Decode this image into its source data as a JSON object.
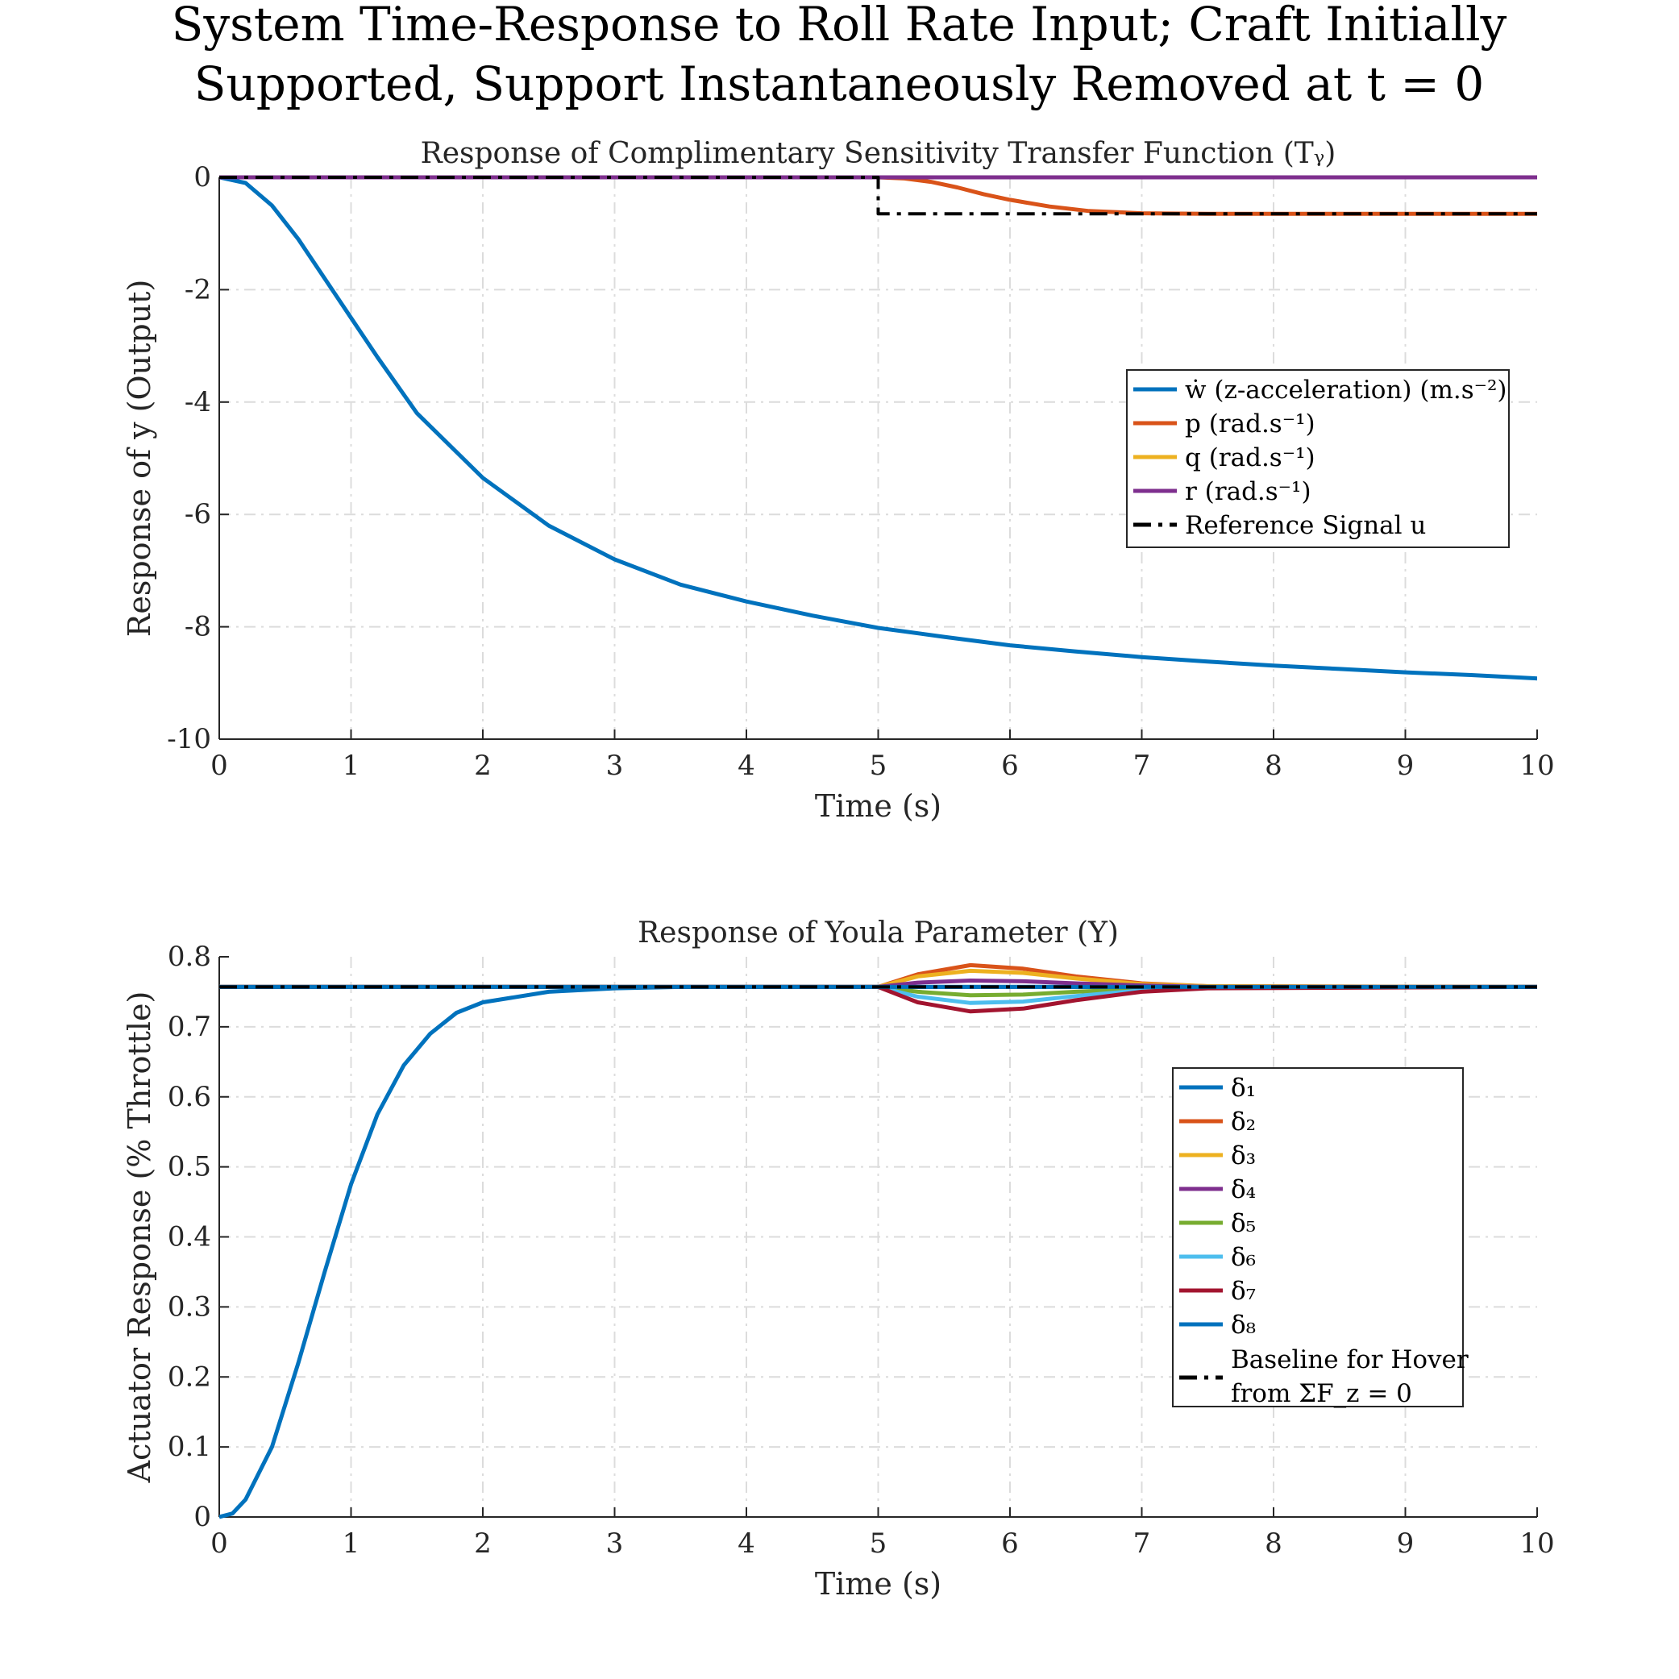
{
  "figure": {
    "title_line1": "System Time-Response to Roll Rate Input; Craft Initially",
    "title_line2": "Supported, Support Instantaneously Removed at t = 0"
  },
  "chart_data": [
    {
      "type": "line",
      "title": "Response of Complimentary Sensitivity Transfer Function (Tᵧ)",
      "xlabel": "Time (s)",
      "ylabel": "Response of y (Output)",
      "xlim": [
        0,
        10
      ],
      "ylim": [
        -10,
        0
      ],
      "xticks": [
        "0",
        "1",
        "2",
        "3",
        "4",
        "5",
        "6",
        "7",
        "8",
        "9",
        "10"
      ],
      "yticks": [
        "0",
        "-2",
        "-4",
        "-6",
        "-8",
        "-10"
      ],
      "grid": true,
      "legend_position": "right, upper-middle",
      "series": [
        {
          "name": "ẇ (z-acceleration) (m.s⁻²)",
          "color": "#0072BD",
          "style": "solid",
          "x": [
            0,
            0.2,
            0.4,
            0.6,
            0.8,
            1.0,
            1.2,
            1.5,
            2.0,
            2.5,
            3.0,
            3.5,
            4.0,
            4.5,
            5.0,
            5.5,
            6.0,
            6.5,
            7.0,
            7.5,
            8.0,
            8.5,
            9.0,
            9.5,
            10.0
          ],
          "y": [
            0,
            -0.1,
            -0.5,
            -1.1,
            -1.8,
            -2.5,
            -3.2,
            -4.2,
            -5.35,
            -6.2,
            -6.8,
            -7.25,
            -7.55,
            -7.8,
            -8.02,
            -8.18,
            -8.33,
            -8.44,
            -8.54,
            -8.62,
            -8.69,
            -8.75,
            -8.81,
            -8.86,
            -8.92
          ]
        },
        {
          "name": "p (rad.s⁻¹)",
          "color": "#D95319",
          "style": "solid",
          "x": [
            0,
            5.0,
            5.2,
            5.4,
            5.6,
            5.8,
            6.0,
            6.3,
            6.6,
            7.0,
            7.5,
            10.0
          ],
          "y": [
            0,
            0,
            -0.02,
            -0.08,
            -0.18,
            -0.3,
            -0.4,
            -0.52,
            -0.6,
            -0.64,
            -0.65,
            -0.65
          ]
        },
        {
          "name": "q (rad.s⁻¹)",
          "color": "#EDB120",
          "style": "solid",
          "x": [
            0,
            10
          ],
          "y": [
            0,
            0
          ]
        },
        {
          "name": "r (rad.s⁻¹)",
          "color": "#7E2F8E",
          "style": "solid",
          "x": [
            0,
            10
          ],
          "y": [
            0,
            0
          ]
        },
        {
          "name": "Reference Signal u",
          "color": "#000000",
          "style": "dashdot",
          "x": [
            0,
            5.0,
            5.0,
            10.0
          ],
          "y": [
            0,
            0,
            -0.65,
            -0.65
          ]
        }
      ]
    },
    {
      "type": "line",
      "title": "Response of Youla Parameter (Y)",
      "xlabel": "Time (s)",
      "ylabel": "Actuator Response (% Throttle)",
      "xlim": [
        0,
        10
      ],
      "ylim": [
        0,
        0.8
      ],
      "xticks": [
        "0",
        "1",
        "2",
        "3",
        "4",
        "5",
        "6",
        "7",
        "8",
        "9",
        "10"
      ],
      "yticks": [
        "0.8",
        "0.7",
        "0.6",
        "0.5",
        "0.4",
        "0.3",
        "0.2",
        "0.1",
        "0"
      ],
      "grid": true,
      "legend_position": "right, middle",
      "series": [
        {
          "name": "δ₁",
          "color": "#0072BD",
          "style": "solid",
          "x": [
            0,
            0.1,
            0.2,
            0.4,
            0.6,
            0.8,
            1.0,
            1.2,
            1.4,
            1.6,
            1.8,
            2.0,
            2.5,
            3.0,
            3.5,
            5.0,
            5.7,
            6.5,
            10.0
          ],
          "y": [
            0,
            0.005,
            0.025,
            0.1,
            0.22,
            0.35,
            0.475,
            0.575,
            0.645,
            0.69,
            0.72,
            0.735,
            0.75,
            0.755,
            0.757,
            0.757,
            0.757,
            0.757,
            0.757
          ]
        },
        {
          "name": "δ₂",
          "color": "#D95319",
          "style": "solid",
          "x": [
            0,
            5.0,
            5.3,
            5.7,
            6.1,
            6.5,
            7.0,
            7.5,
            10.0
          ],
          "y": [
            0.757,
            0.757,
            0.775,
            0.788,
            0.783,
            0.772,
            0.762,
            0.758,
            0.757
          ]
        },
        {
          "name": "δ₃",
          "color": "#EDB120",
          "style": "solid",
          "x": [
            0,
            5.0,
            5.3,
            5.7,
            6.1,
            6.5,
            7.0,
            7.5,
            10.0
          ],
          "y": [
            0.757,
            0.757,
            0.772,
            0.78,
            0.777,
            0.769,
            0.761,
            0.758,
            0.757
          ]
        },
        {
          "name": "δ₄",
          "color": "#7E2F8E",
          "style": "solid",
          "x": [
            0,
            5.0,
            5.3,
            5.7,
            6.1,
            6.5,
            7.0,
            7.5,
            10.0
          ],
          "y": [
            0.757,
            0.757,
            0.763,
            0.766,
            0.765,
            0.762,
            0.759,
            0.757,
            0.757
          ]
        },
        {
          "name": "δ₅",
          "color": "#77AC30",
          "style": "solid",
          "x": [
            0,
            5.0,
            5.3,
            5.7,
            6.1,
            6.5,
            7.0,
            7.5,
            10.0
          ],
          "y": [
            0.757,
            0.757,
            0.75,
            0.745,
            0.746,
            0.75,
            0.754,
            0.756,
            0.757
          ]
        },
        {
          "name": "δ₆",
          "color": "#4DBEEE",
          "style": "solid",
          "x": [
            0,
            5.0,
            5.3,
            5.7,
            6.1,
            6.5,
            7.0,
            7.5,
            10.0
          ],
          "y": [
            0.757,
            0.757,
            0.743,
            0.734,
            0.736,
            0.744,
            0.752,
            0.756,
            0.757
          ]
        },
        {
          "name": "δ₇",
          "color": "#A2142F",
          "style": "solid",
          "x": [
            0,
            5.0,
            5.3,
            5.7,
            6.1,
            6.5,
            7.0,
            7.5,
            10.0
          ],
          "y": [
            0.757,
            0.757,
            0.735,
            0.722,
            0.726,
            0.738,
            0.75,
            0.755,
            0.757
          ]
        },
        {
          "name": "δ₈",
          "color": "#0072BD",
          "style": "solid",
          "x": [
            0,
            10
          ],
          "y": [
            0.757,
            0.757
          ]
        },
        {
          "name": "Baseline for Hover from ΣF_z = 0",
          "color": "#000000",
          "style": "dashdot",
          "x": [
            0,
            10
          ],
          "y": [
            0.757,
            0.757
          ]
        }
      ]
    }
  ]
}
